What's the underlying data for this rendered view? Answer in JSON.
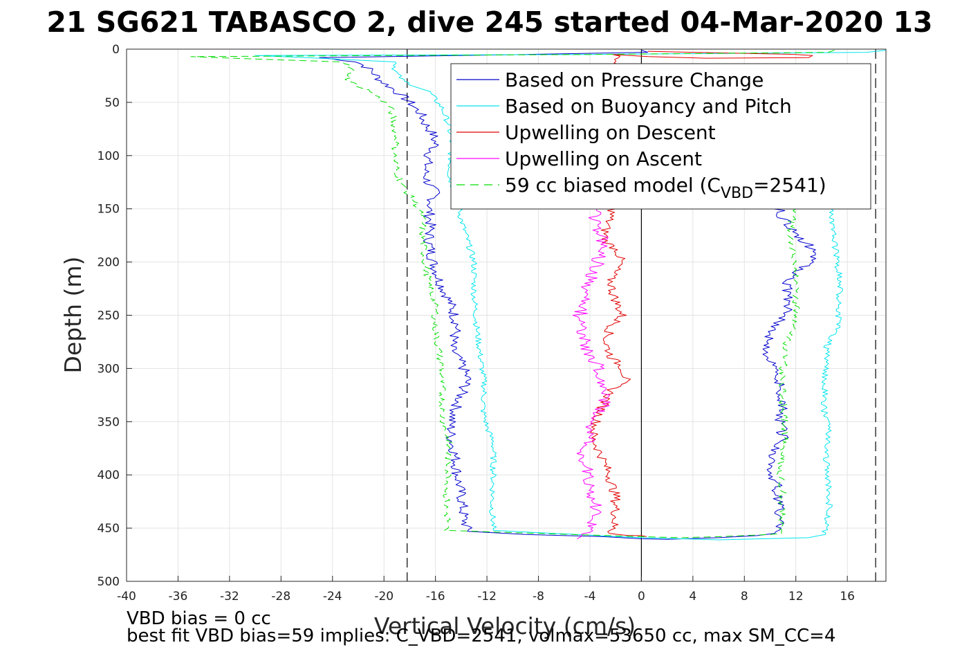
{
  "figure": {
    "title": "21 SG621 TABASCO 2, dive 245 started 04-Mar-2020 13",
    "footer_line1": "VBD bias = 0 cc",
    "footer_line2": "best fit VBD bias=59 implies: C_VBD=2541, volmax=53650 cc, max SM_CC=4"
  },
  "chart_data": {
    "type": "line",
    "title": "21 SG621 TABASCO 2, dive 245 started 04-Mar-2020 13",
    "xlabel": "Vertical Velocity (cm/s)",
    "ylabel": "Depth (m)",
    "xlim": [
      -40,
      19
    ],
    "ylim": [
      0,
      500
    ],
    "y_reversed": true,
    "grid": true,
    "x_ticks": [
      -40,
      -36,
      -32,
      -28,
      -24,
      -20,
      -16,
      -12,
      -8,
      -4,
      0,
      4,
      8,
      12,
      16
    ],
    "y_ticks": [
      0,
      50,
      100,
      150,
      200,
      250,
      300,
      350,
      400,
      450,
      500
    ],
    "reference_lines": [
      {
        "orientation": "vertical",
        "x": 0,
        "style": "solid",
        "color": "#000000"
      },
      {
        "orientation": "vertical",
        "x": -18.2,
        "style": "dashed",
        "color": "#000000"
      },
      {
        "orientation": "vertical",
        "x": 18.2,
        "style": "dashed",
        "color": "#000000"
      }
    ],
    "legend_position": "top-right",
    "legend": [
      {
        "label": "Based on Pressure Change",
        "color": "#0000cc",
        "dash": "solid"
      },
      {
        "label": "Based on Buoyancy and Pitch",
        "color": "#00e5ee",
        "dash": "solid"
      },
      {
        "label": "Upwelling on Descent",
        "color": "#e00000",
        "dash": "solid"
      },
      {
        "label": "Upwelling on Ascent",
        "color": "#ff00ff",
        "dash": "solid"
      },
      {
        "label_main": "59 cc biased model (C",
        "label_sub": "VBD",
        "label_tail": "=2541)",
        "color": "#00dd00",
        "dash": "dashed"
      }
    ],
    "series": [
      {
        "name": "Based on Pressure Change",
        "color": "#0000cc",
        "dash": "solid",
        "noise": 0.45,
        "points": [
          [
            0,
            1
          ],
          [
            0.5,
            3
          ],
          [
            -9,
            5
          ],
          [
            -25,
            8
          ],
          [
            -22,
            12
          ],
          [
            -21,
            20
          ],
          [
            -20.2,
            30
          ],
          [
            -19,
            40
          ],
          [
            -18,
            50
          ],
          [
            -17.2,
            60
          ],
          [
            -16.8,
            70
          ],
          [
            -16.2,
            80
          ],
          [
            -16,
            90
          ],
          [
            -16.5,
            100
          ],
          [
            -16.8,
            115
          ],
          [
            -16.6,
            125
          ],
          [
            -16,
            135
          ],
          [
            -16.5,
            150
          ],
          [
            -16.4,
            165
          ],
          [
            -16.5,
            180
          ],
          [
            -16.2,
            200
          ],
          [
            -15.6,
            220
          ],
          [
            -14.8,
            240
          ],
          [
            -14.3,
            260
          ],
          [
            -14.8,
            280
          ],
          [
            -14,
            295
          ],
          [
            -13.5,
            310
          ],
          [
            -14.2,
            330
          ],
          [
            -14.8,
            350
          ],
          [
            -14.8,
            365
          ],
          [
            -14.5,
            380
          ],
          [
            -14.3,
            400
          ],
          [
            -14,
            420
          ],
          [
            -13.8,
            440
          ],
          [
            -13.5,
            453
          ],
          [
            -9,
            456
          ],
          [
            -3,
            458
          ],
          [
            0,
            460
          ],
          [
            2,
            460.5
          ],
          [
            6,
            459
          ],
          [
            9,
            457
          ],
          [
            10.5,
            455
          ],
          [
            10.8,
            450
          ],
          [
            10.7,
            430
          ],
          [
            10.5,
            410
          ],
          [
            10,
            395
          ],
          [
            10.4,
            380
          ],
          [
            11,
            365
          ],
          [
            10.8,
            350
          ],
          [
            11,
            330
          ],
          [
            10.7,
            315
          ],
          [
            10.8,
            300
          ],
          [
            9.5,
            290
          ],
          [
            9.8,
            275
          ],
          [
            10.2,
            262
          ],
          [
            11.5,
            248
          ],
          [
            11.5,
            235
          ],
          [
            11.2,
            220
          ],
          [
            11.8,
            210
          ],
          [
            13.3,
            200
          ],
          [
            13.7,
            190
          ],
          [
            12.2,
            178
          ],
          [
            11.5,
            165
          ],
          [
            10.8,
            155
          ],
          [
            10.5,
            145
          ]
        ]
      },
      {
        "name": "Based on Buoyancy and Pitch",
        "color": "#00e5ee",
        "dash": "solid",
        "noise": 0.25,
        "points": [
          [
            19,
            1
          ],
          [
            17.5,
            3
          ],
          [
            -4,
            5
          ],
          [
            -30,
            6
          ],
          [
            -26,
            8
          ],
          [
            -19,
            12
          ],
          [
            -19.2,
            20
          ],
          [
            -18.5,
            30
          ],
          [
            -16.5,
            40
          ],
          [
            -15.5,
            55
          ],
          [
            -15,
            70
          ],
          [
            -14.8,
            85
          ],
          [
            -14.8,
            100
          ],
          [
            -14.9,
            120
          ],
          [
            -14.3,
            140
          ],
          [
            -14,
            160
          ],
          [
            -13.5,
            180
          ],
          [
            -13,
            200
          ],
          [
            -13,
            230
          ],
          [
            -12.8,
            260
          ],
          [
            -12.5,
            290
          ],
          [
            -12.2,
            315
          ],
          [
            -12.3,
            340
          ],
          [
            -12,
            355
          ],
          [
            -11.5,
            370
          ],
          [
            -11.5,
            400
          ],
          [
            -11.6,
            430
          ],
          [
            -11.5,
            452
          ],
          [
            -7,
            455
          ],
          [
            0,
            459
          ],
          [
            6,
            461
          ],
          [
            13,
            459
          ],
          [
            14.2,
            456
          ],
          [
            14.3,
            450
          ],
          [
            14.6,
            430
          ],
          [
            14.5,
            400
          ],
          [
            14.3,
            380
          ],
          [
            14.6,
            360
          ],
          [
            14.2,
            340
          ],
          [
            14.3,
            300
          ],
          [
            14.4,
            280
          ],
          [
            15.3,
            260
          ],
          [
            15.3,
            240
          ],
          [
            15.5,
            220
          ],
          [
            15.2,
            200
          ],
          [
            15,
            180
          ],
          [
            14.8,
            160
          ],
          [
            14.7,
            150
          ]
        ]
      },
      {
        "name": "Upwelling on Descent",
        "color": "#e00000",
        "dash": "solid",
        "noise": 0.4,
        "points": [
          [
            0.5,
            2
          ],
          [
            4,
            3
          ],
          [
            12,
            5
          ],
          [
            13.3,
            6
          ],
          [
            13,
            8
          ],
          [
            5,
            8.5
          ],
          [
            0.5,
            7
          ],
          [
            -2,
            5
          ],
          [
            -2.2,
            150
          ],
          [
            -2.5,
            160
          ],
          [
            -2.8,
            170
          ],
          [
            -2.8,
            180
          ],
          [
            -1.8,
            190
          ],
          [
            -1.6,
            200
          ],
          [
            -2.4,
            215
          ],
          [
            -2.2,
            230
          ],
          [
            -1.5,
            250
          ],
          [
            -2.4,
            262
          ],
          [
            -2.8,
            275
          ],
          [
            -2.3,
            290
          ],
          [
            -1.4,
            300
          ],
          [
            -1.2,
            310
          ],
          [
            -2.3,
            320
          ],
          [
            -3,
            335
          ],
          [
            -3.5,
            350
          ],
          [
            -3.8,
            365
          ],
          [
            -3,
            385
          ],
          [
            -2.5,
            400
          ],
          [
            -2,
            420
          ],
          [
            -2,
            440
          ],
          [
            -2.2,
            450
          ],
          [
            -2.5,
            455
          ],
          [
            -1,
            457
          ],
          [
            0,
            457
          ],
          [
            0.4,
            458
          ]
        ]
      },
      {
        "name": "Upwelling on Ascent",
        "color": "#ff00ff",
        "dash": "solid",
        "noise": 0.55,
        "points": [
          [
            -5,
            460
          ],
          [
            -4.5,
            458
          ],
          [
            -4,
            454
          ],
          [
            -3.8,
            445
          ],
          [
            -3.6,
            430
          ],
          [
            -4,
            410
          ],
          [
            -4.3,
            395
          ],
          [
            -4.6,
            380
          ],
          [
            -4.1,
            365
          ],
          [
            -3.8,
            350
          ],
          [
            -3,
            335
          ],
          [
            -2.8,
            320
          ],
          [
            -3.2,
            305
          ],
          [
            -3.5,
            295
          ],
          [
            -4.3,
            280
          ],
          [
            -4.6,
            265
          ],
          [
            -4.8,
            250
          ],
          [
            -4.2,
            235
          ],
          [
            -4.1,
            220
          ],
          [
            -3.5,
            205
          ],
          [
            -3.2,
            190
          ],
          [
            -3.1,
            175
          ],
          [
            -3.7,
            160
          ],
          [
            -3.5,
            150
          ],
          [
            -3.8,
            145
          ],
          [
            -4,
            140
          ]
        ]
      },
      {
        "name": "59 cc biased model (C_VBD=2541)",
        "color": "#00dd00",
        "dash": "dashed",
        "noise": 0.3,
        "points": [
          [
            15,
            1
          ],
          [
            14.5,
            3
          ],
          [
            -4,
            5
          ],
          [
            -35,
            7
          ],
          [
            -33,
            8
          ],
          [
            -23,
            12
          ],
          [
            -22.5,
            20
          ],
          [
            -22.8,
            30
          ],
          [
            -21,
            40
          ],
          [
            -19.5,
            55
          ],
          [
            -19.2,
            70
          ],
          [
            -19,
            85
          ],
          [
            -19.2,
            100
          ],
          [
            -19,
            115
          ],
          [
            -18.5,
            130
          ],
          [
            -17.5,
            145
          ],
          [
            -17,
            160
          ],
          [
            -17,
            180
          ],
          [
            -16.8,
            200
          ],
          [
            -16.5,
            220
          ],
          [
            -16,
            245
          ],
          [
            -16,
            260
          ],
          [
            -15.8,
            280
          ],
          [
            -15.5,
            300
          ],
          [
            -15.5,
            320
          ],
          [
            -15.5,
            340
          ],
          [
            -15.3,
            355
          ],
          [
            -15,
            370
          ],
          [
            -15,
            400
          ],
          [
            -15.2,
            430
          ],
          [
            -15,
            445
          ],
          [
            -15.3,
            452
          ],
          [
            -8,
            455
          ],
          [
            0,
            458
          ],
          [
            3,
            459
          ],
          [
            6,
            458
          ],
          [
            10,
            456
          ],
          [
            10.7,
            455
          ],
          [
            10.9,
            440
          ],
          [
            11,
            420
          ],
          [
            10.8,
            400
          ],
          [
            11,
            380
          ],
          [
            11.2,
            360
          ],
          [
            11,
            340
          ],
          [
            11,
            320
          ],
          [
            11,
            300
          ],
          [
            11.2,
            280
          ],
          [
            11.8,
            262
          ],
          [
            12,
            250
          ],
          [
            12,
            230
          ],
          [
            11.9,
            210
          ],
          [
            11.8,
            190
          ],
          [
            11.6,
            175
          ],
          [
            11.7,
            160
          ],
          [
            11.8,
            150
          ],
          [
            11.9,
            140
          ]
        ]
      }
    ]
  }
}
